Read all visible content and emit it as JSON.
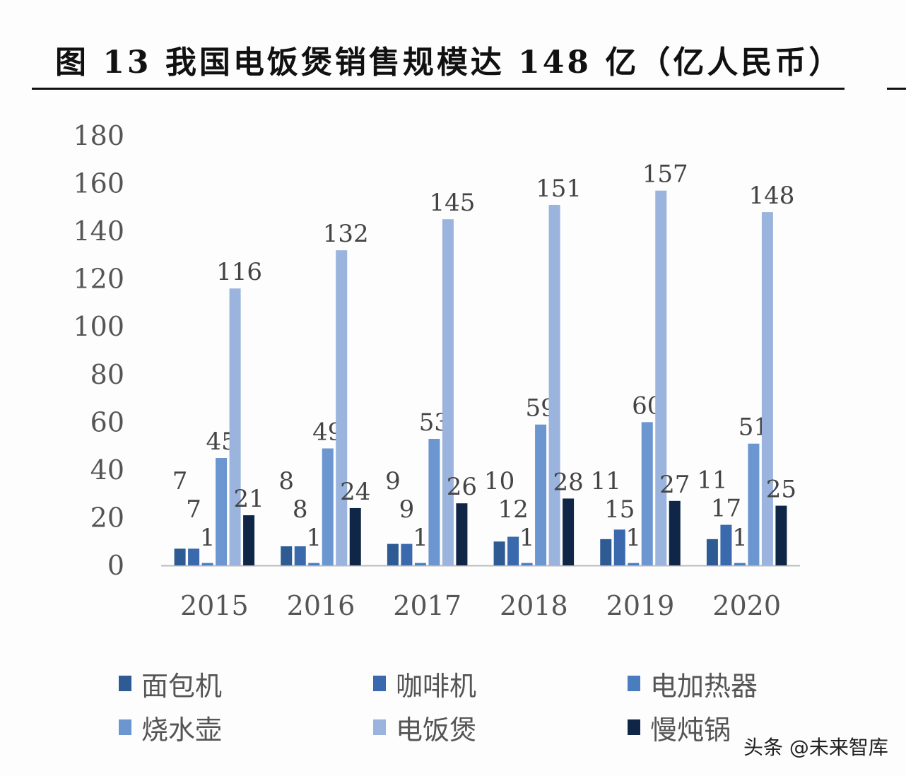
{
  "title": "图 13 我国电饭煲销售规模达 148 亿（亿人民币）",
  "watermark": "头条 @未来智库",
  "chart_data": {
    "type": "bar",
    "title": "图 13 我国电饭煲销售规模达 148 亿（亿人民币）",
    "categories": [
      "2015",
      "2016",
      "2017",
      "2018",
      "2019",
      "2020"
    ],
    "series": [
      {
        "name": "面包机",
        "color": "#2f5b94",
        "values": [
          7,
          8,
          9,
          10,
          11,
          11
        ]
      },
      {
        "name": "咖啡机",
        "color": "#3a6aad",
        "values": [
          7,
          8,
          9,
          12,
          15,
          17
        ]
      },
      {
        "name": "电加热器",
        "color": "#4a7cc0",
        "values": [
          1,
          1,
          1,
          1,
          1,
          1
        ]
      },
      {
        "name": "烧水壶",
        "color": "#6b96d0",
        "values": [
          45,
          49,
          53,
          59,
          60,
          51
        ]
      },
      {
        "name": "电饭煲",
        "color": "#9ab4de",
        "values": [
          116,
          132,
          145,
          151,
          157,
          148
        ]
      },
      {
        "name": "慢炖锅",
        "color": "#0f2646",
        "values": [
          21,
          24,
          26,
          28,
          27,
          25
        ]
      }
    ],
    "yticks": [
      "0",
      "20",
      "40",
      "60",
      "80",
      "100",
      "120",
      "140",
      "160",
      "180"
    ],
    "ylim": [
      0,
      180
    ],
    "xlabel": "",
    "ylabel": "",
    "grid": false,
    "legend": "bottom"
  }
}
